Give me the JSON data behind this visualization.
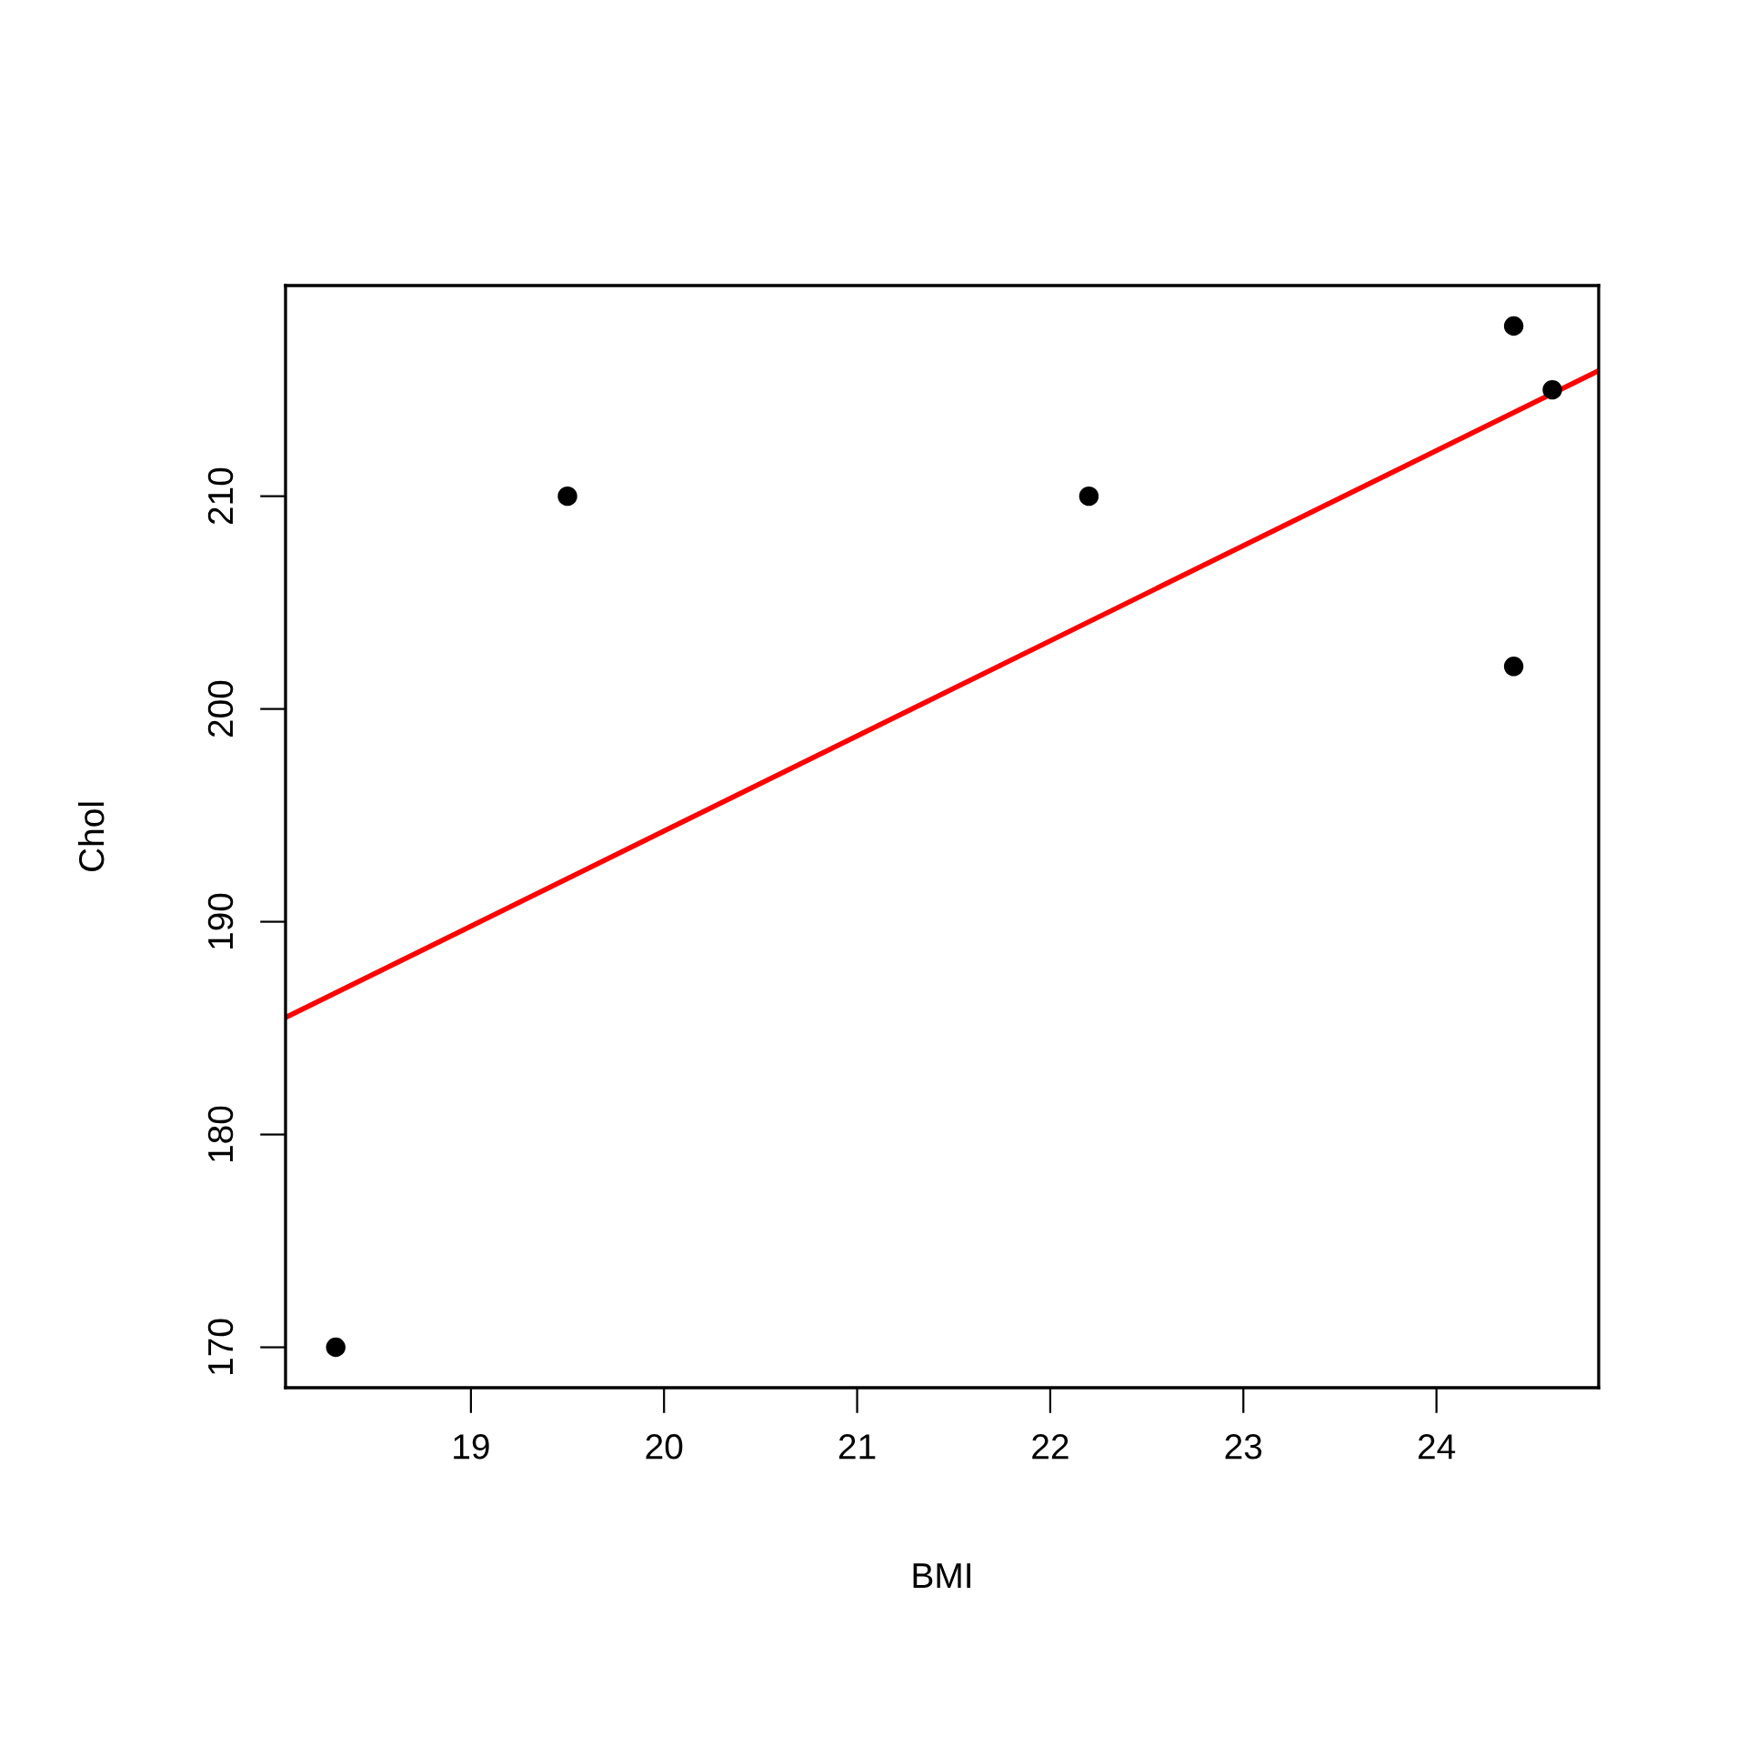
{
  "chart_data": {
    "type": "scatter",
    "xlabel": "BMI",
    "ylabel": "Chol",
    "series": [
      {
        "color": "#000000",
        "x": [
          18.3,
          19.5,
          22.2,
          24.4,
          24.4,
          24.6
        ],
        "values": [
          170,
          210,
          210,
          218,
          202,
          215
        ],
        "marker": "circle"
      },
      {
        "type": "line",
        "color": "#ff0000",
        "x": [
          18.04,
          24.84
        ],
        "values": [
          185.5,
          215.9
        ],
        "marker": "none",
        "line_style": "solid"
      }
    ],
    "xlim": [
      18.04,
      24.84
    ],
    "ylim": [
      168.1,
      219.9
    ],
    "xticks": [
      19,
      20,
      21,
      22,
      23,
      24
    ],
    "yticks": [
      170,
      180,
      190,
      200,
      210
    ],
    "grid": false,
    "legend": false
  }
}
